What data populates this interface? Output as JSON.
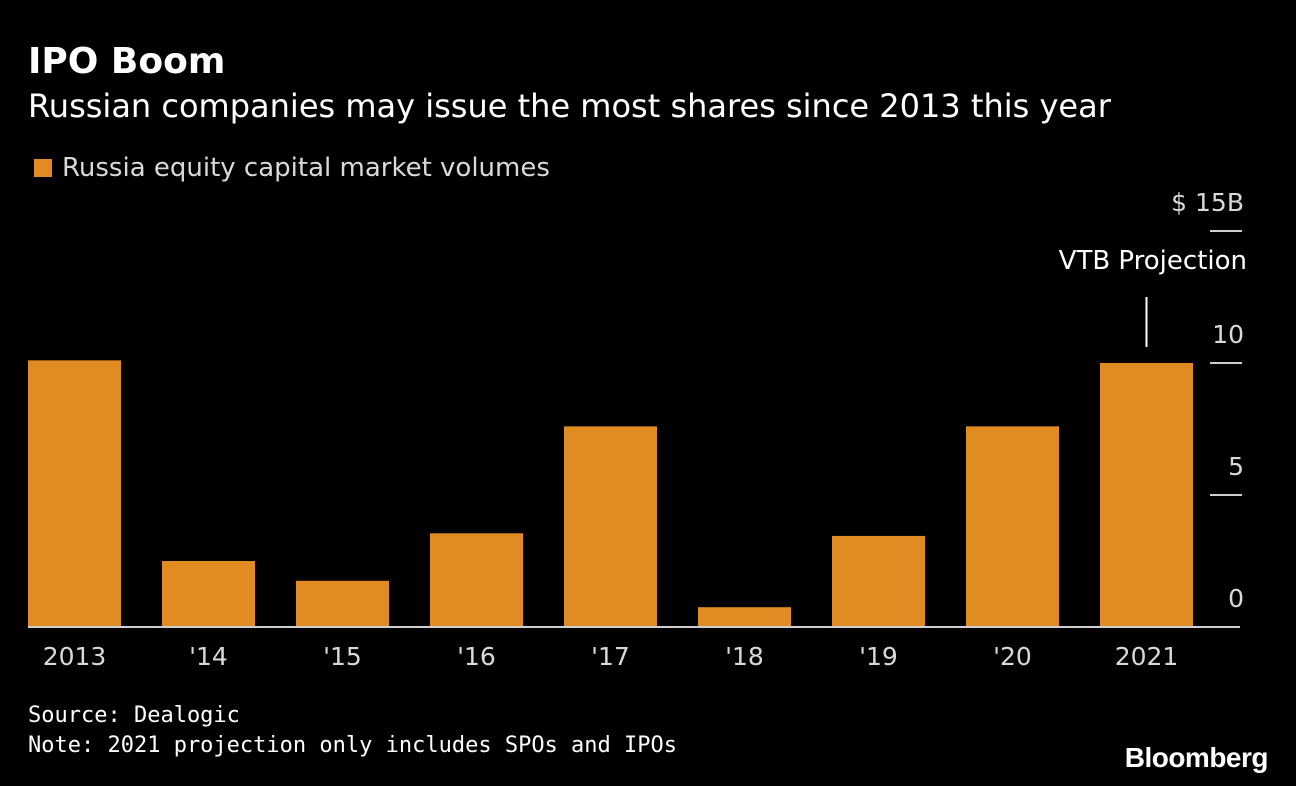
{
  "colors": {
    "background": "#000000",
    "bar": "#e08c22",
    "text": "#ffffff",
    "muted": "#d9d9d9"
  },
  "header": {
    "title": "IPO Boom",
    "subtitle": "Russian companies may issue the most shares since 2013 this year"
  },
  "legend": {
    "label": "Russia equity capital market volumes"
  },
  "chart_data": {
    "type": "bar",
    "title": "IPO Boom",
    "subtitle": "Russian companies may issue the most shares since 2013 this year",
    "categories": [
      "2013",
      "'14",
      "'15",
      "'16",
      "'17",
      "'18",
      "'19",
      "'20",
      "2021"
    ],
    "series": [
      {
        "name": "Russia equity capital market volumes",
        "values": [
          10.1,
          2.5,
          1.75,
          3.55,
          7.6,
          0.75,
          3.45,
          7.6,
          10.0
        ]
      }
    ],
    "y_ticks": [
      "0",
      "5",
      "10",
      "$ 15B"
    ],
    "y_tick_values": [
      0,
      5,
      10,
      15
    ],
    "ylim": [
      0,
      15
    ],
    "xlabel": "",
    "ylabel": "",
    "y_axis_side": "right",
    "annotation": {
      "label": "VTB Projection",
      "category": "2021"
    }
  },
  "footer": {
    "source": "Source: Dealogic",
    "note": "Note: 2021 projection only includes SPOs and IPOs",
    "brand": "Bloomberg"
  }
}
